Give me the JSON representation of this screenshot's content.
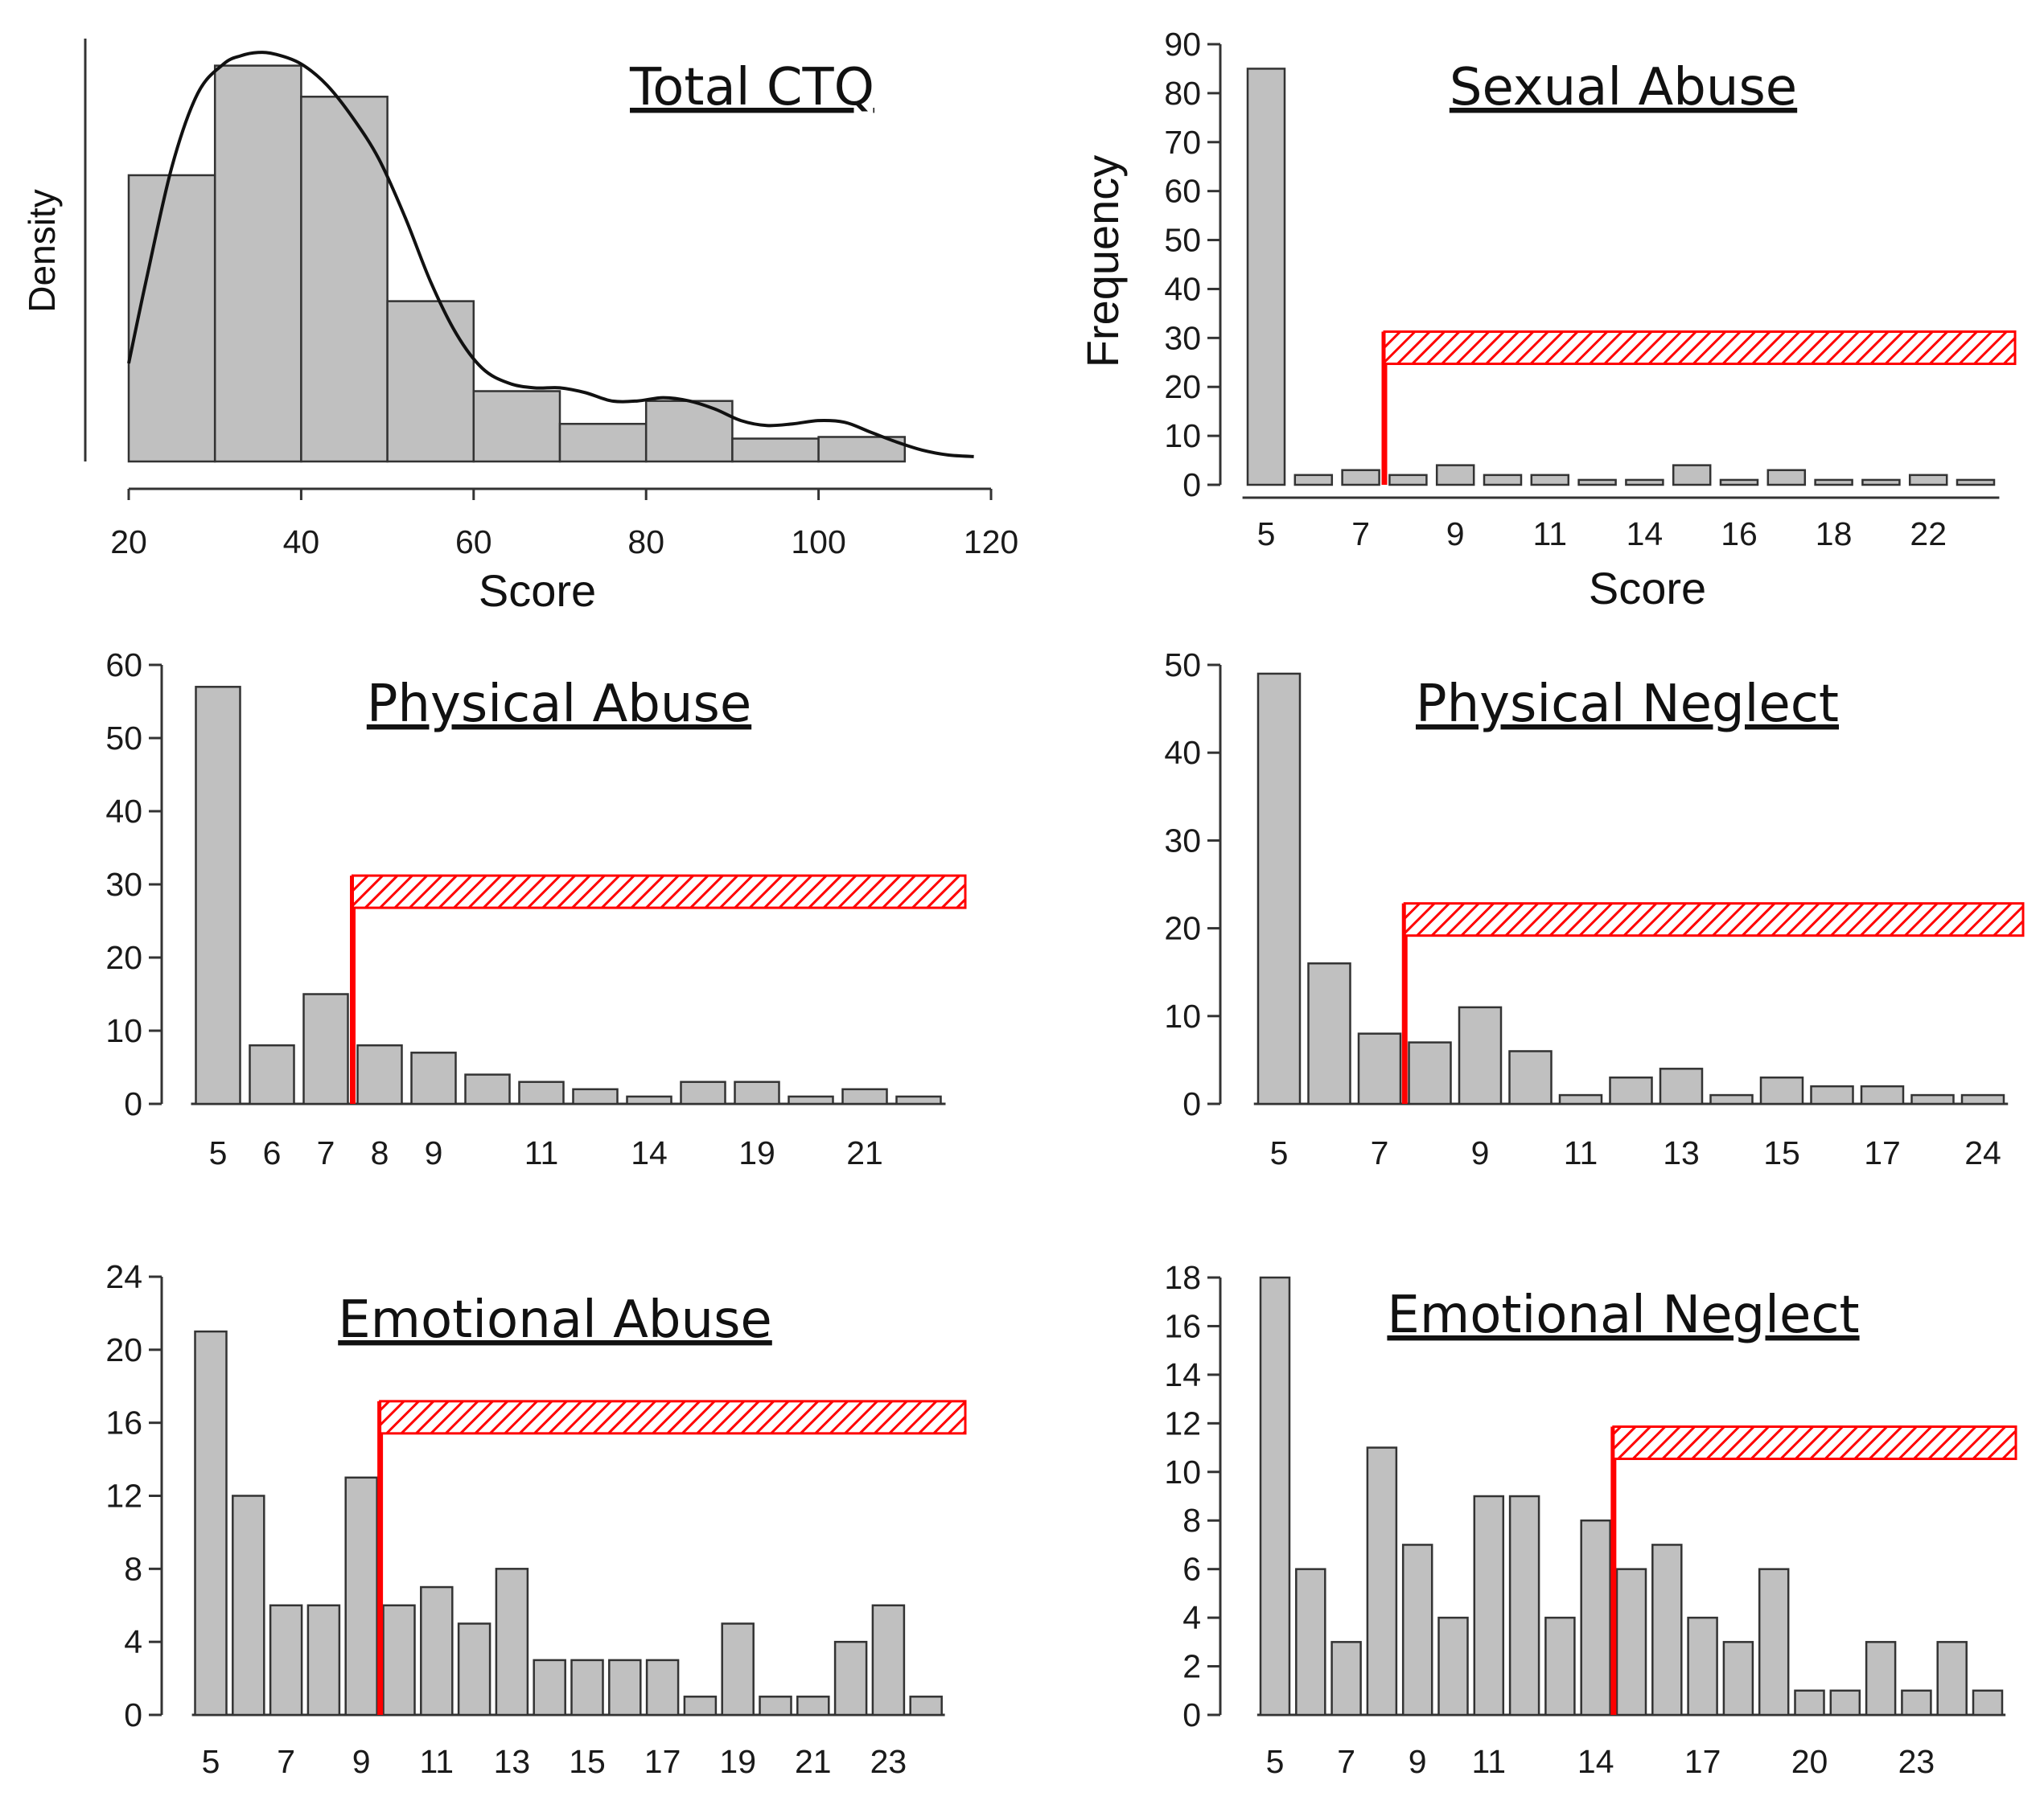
{
  "figure": {
    "colors": {
      "bar": "#c0c0c0",
      "bar_stroke": "#333333",
      "threshold": "#ff0000",
      "axis": "#333333"
    }
  },
  "chart_data": [
    {
      "type": "histogram",
      "title": "Total CTQ",
      "xlabel": "Score",
      "ylabel": "Density",
      "xlim": [
        20,
        120
      ],
      "xticks": [
        "20",
        "40",
        "60",
        "80",
        "100",
        "120"
      ],
      "bins": [
        {
          "x0": 20,
          "x1": 30,
          "value": 0.0175
        },
        {
          "x0": 30,
          "x1": 40,
          "value": 0.0242
        },
        {
          "x0": 40,
          "x1": 50,
          "value": 0.0223
        },
        {
          "x0": 50,
          "x1": 60,
          "value": 0.0098
        },
        {
          "x0": 60,
          "x1": 70,
          "value": 0.0043
        },
        {
          "x0": 70,
          "x1": 80,
          "value": 0.0023
        },
        {
          "x0": 80,
          "x1": 90,
          "value": 0.0037
        },
        {
          "x0": 90,
          "x1": 100,
          "value": 0.0014
        },
        {
          "x0": 100,
          "x1": 110,
          "value": 0.0015
        }
      ],
      "density_curve": [
        [
          20,
          0.006
        ],
        [
          22,
          0.011
        ],
        [
          25,
          0.018
        ],
        [
          28,
          0.0225
        ],
        [
          31,
          0.0243
        ],
        [
          33,
          0.0248
        ],
        [
          35,
          0.025
        ],
        [
          37,
          0.0249
        ],
        [
          40,
          0.0243
        ],
        [
          43,
          0.023
        ],
        [
          46,
          0.021
        ],
        [
          49,
          0.0185
        ],
        [
          52,
          0.015
        ],
        [
          55,
          0.011
        ],
        [
          58,
          0.0078
        ],
        [
          61,
          0.0057
        ],
        [
          64,
          0.0048
        ],
        [
          67,
          0.0045
        ],
        [
          70,
          0.0045
        ],
        [
          73,
          0.0042
        ],
        [
          76,
          0.0037
        ],
        [
          79,
          0.0037
        ],
        [
          82,
          0.0039
        ],
        [
          85,
          0.0037
        ],
        [
          88,
          0.0032
        ],
        [
          91,
          0.0025
        ],
        [
          94,
          0.0022
        ],
        [
          97,
          0.0023
        ],
        [
          100,
          0.0025
        ],
        [
          103,
          0.0024
        ],
        [
          106,
          0.0018
        ],
        [
          109,
          0.0012
        ],
        [
          112,
          0.0007
        ],
        [
          115,
          0.0004
        ],
        [
          118,
          0.0003
        ]
      ],
      "ylim": [
        0,
        0.026
      ]
    },
    {
      "type": "bar",
      "title": "Sexual Abuse",
      "xlabel": "Score",
      "ylabel": "Frequency",
      "ylim": [
        0,
        90
      ],
      "yticks": [
        "0",
        "10",
        "20",
        "30",
        "40",
        "50",
        "60",
        "70",
        "80",
        "90"
      ],
      "values": [
        85,
        2,
        3,
        2,
        4,
        2,
        2,
        1,
        1,
        4,
        1,
        3,
        1,
        1,
        2,
        1
      ],
      "xtick_labels": [
        {
          "bar": 0,
          "label": "5"
        },
        {
          "bar": 2,
          "label": "7"
        },
        {
          "bar": 4,
          "label": "9"
        },
        {
          "bar": 6,
          "label": "11"
        },
        {
          "bar": 8,
          "label": "14"
        },
        {
          "bar": 10,
          "label": "16"
        },
        {
          "bar": 12,
          "label": "18"
        },
        {
          "bar": 14,
          "label": "22"
        }
      ],
      "threshold": {
        "after_bar": 2,
        "value": 28
      }
    },
    {
      "type": "bar",
      "title": "Physical Abuse",
      "xlabel": "",
      "ylabel": "",
      "ylim": [
        0,
        60
      ],
      "yticks": [
        "0",
        "10",
        "20",
        "30",
        "40",
        "50",
        "60"
      ],
      "values": [
        57,
        8,
        15,
        8,
        7,
        4,
        3,
        2,
        1,
        3,
        3,
        1,
        2,
        1
      ],
      "xtick_labels": [
        {
          "bar": 0,
          "label": "5"
        },
        {
          "bar": 1,
          "label": "6"
        },
        {
          "bar": 2,
          "label": "7"
        },
        {
          "bar": 3,
          "label": "8"
        },
        {
          "bar": 4,
          "label": "9"
        },
        {
          "bar": 6,
          "label": "11"
        },
        {
          "bar": 8,
          "label": "14"
        },
        {
          "bar": 10,
          "label": "19"
        },
        {
          "bar": 12,
          "label": "21"
        }
      ],
      "threshold": {
        "after_bar": 2,
        "value": 29
      }
    },
    {
      "type": "bar",
      "title": "Physical Neglect",
      "xlabel": "",
      "ylabel": "",
      "ylim": [
        0,
        50
      ],
      "yticks": [
        "0",
        "10",
        "20",
        "30",
        "40",
        "50"
      ],
      "values": [
        49,
        16,
        8,
        7,
        11,
        6,
        1,
        3,
        4,
        1,
        3,
        2,
        2,
        1,
        1
      ],
      "xtick_labels": [
        {
          "bar": 0,
          "label": "5"
        },
        {
          "bar": 2,
          "label": "7"
        },
        {
          "bar": 4,
          "label": "9"
        },
        {
          "bar": 6,
          "label": "11"
        },
        {
          "bar": 8,
          "label": "13"
        },
        {
          "bar": 10,
          "label": "15"
        },
        {
          "bar": 12,
          "label": "17"
        },
        {
          "bar": 14,
          "label": "24"
        }
      ],
      "threshold": {
        "after_bar": 2,
        "value": 21
      }
    },
    {
      "type": "bar",
      "title": "Emotional Abuse",
      "xlabel": "",
      "ylabel": "",
      "ylim": [
        0,
        24
      ],
      "yticks": [
        "0",
        "4",
        "8",
        "12",
        "16",
        "20",
        "24"
      ],
      "values": [
        21,
        12,
        6,
        6,
        13,
        6,
        7,
        5,
        8,
        3,
        3,
        3,
        3,
        1,
        5,
        1,
        1,
        4,
        6,
        1
      ],
      "xtick_labels": [
        {
          "bar": 0,
          "label": "5"
        },
        {
          "bar": 2,
          "label": "7"
        },
        {
          "bar": 4,
          "label": "9"
        },
        {
          "bar": 6,
          "label": "11"
        },
        {
          "bar": 8,
          "label": "13"
        },
        {
          "bar": 10,
          "label": "15"
        },
        {
          "bar": 12,
          "label": "17"
        },
        {
          "bar": 14,
          "label": "19"
        },
        {
          "bar": 16,
          "label": "21"
        },
        {
          "bar": 18,
          "label": "23"
        }
      ],
      "threshold": {
        "after_bar": 4,
        "value": 16.3
      }
    },
    {
      "type": "bar",
      "title": "Emotional Neglect",
      "xlabel": "",
      "ylabel": "",
      "ylim": [
        0,
        18
      ],
      "yticks": [
        "0",
        "2",
        "4",
        "6",
        "8",
        "10",
        "12",
        "14",
        "16",
        "18"
      ],
      "values": [
        18,
        6,
        3,
        11,
        7,
        4,
        9,
        9,
        4,
        8,
        6,
        7,
        4,
        3,
        6,
        1,
        1,
        3,
        1,
        3,
        1
      ],
      "xtick_labels": [
        {
          "bar": 0,
          "label": "5"
        },
        {
          "bar": 2,
          "label": "7"
        },
        {
          "bar": 4,
          "label": "9"
        },
        {
          "bar": 6,
          "label": "11"
        },
        {
          "bar": 9,
          "label": "14"
        },
        {
          "bar": 12,
          "label": "17"
        },
        {
          "bar": 15,
          "label": "20"
        },
        {
          "bar": 18,
          "label": "23"
        }
      ],
      "threshold": {
        "after_bar": 9,
        "value": 11.2
      }
    }
  ]
}
